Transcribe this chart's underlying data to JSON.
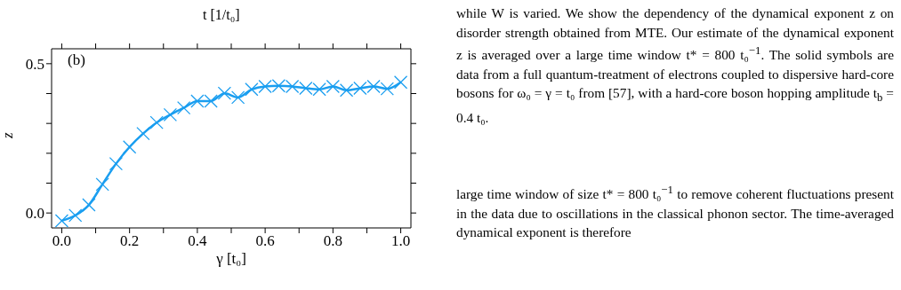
{
  "chart_data": {
    "type": "line",
    "xlabel": "γ [t₀]",
    "ylabel": "z",
    "x": [
      0,
      0.04,
      0.08,
      0.12,
      0.16,
      0.2,
      0.24,
      0.28,
      0.32,
      0.36,
      0.4,
      0.44,
      0.48,
      0.52,
      0.56,
      0.6,
      0.64,
      0.68,
      0.72,
      0.76,
      0.8,
      0.84,
      0.88,
      0.92,
      0.96,
      1.0
    ],
    "series": [
      {
        "color": "#1a9ef0",
        "values": [
          -0.026,
          -0.008,
          0.027,
          0.096,
          0.165,
          0.221,
          0.266,
          0.303,
          0.329,
          0.352,
          0.375,
          0.375,
          0.401,
          0.387,
          0.414,
          0.424,
          0.426,
          0.424,
          0.418,
          0.414,
          0.424,
          0.411,
          0.418,
          0.424,
          0.416,
          0.438
        ]
      }
    ],
    "marker": "cross",
    "line_style": "solid",
    "xlim": [
      -0.03,
      1.03
    ],
    "ylim": [
      -0.05,
      0.55
    ],
    "xticks": [
      {
        "value": 0,
        "label": "0.0"
      },
      {
        "value": 0.1,
        "label": null
      },
      0.2,
      {
        "value": 0.3,
        "label": null
      },
      0.4,
      {
        "value": 0.5,
        "label": null
      },
      0.6,
      {
        "value": 0.7,
        "label": null
      },
      0.8,
      {
        "value": 0.9,
        "label": null
      },
      {
        "value": 1,
        "label": "1.0"
      }
    ],
    "yticks": [
      {
        "value": 0,
        "label": "0.0"
      },
      {
        "value": 0.1,
        "label": null
      },
      {
        "value": 0.2,
        "label": null
      },
      {
        "value": 0.3,
        "label": null
      },
      {
        "value": 0.4,
        "label": null
      },
      0.5
    ],
    "annotations": [
      "(b)",
      "t [1/t₀]",
      "while W is varied. We show the dependency of the dynamical exponent z on disorder strength obtained from MTE. Our estimate of the dynamical exponent z is averaged over a large time window t* = 800 t₀$^{−1}$. The solid symbols are data from a full quantum-treatment of electrons coupled to dispersive hard-core bosons for ω₀ = γ = t₀ from [57], with a hard-core boson hopping amplitude t$_{b}$ = 0.4 t₀.",
      "large time window of size t* = 800 t₀$^{−1}$ to remove coherent fluctuations present in the data due to oscillations in the classical phonon sector. The time-averaged dynamical exponent is therefore"
    ]
  }
}
